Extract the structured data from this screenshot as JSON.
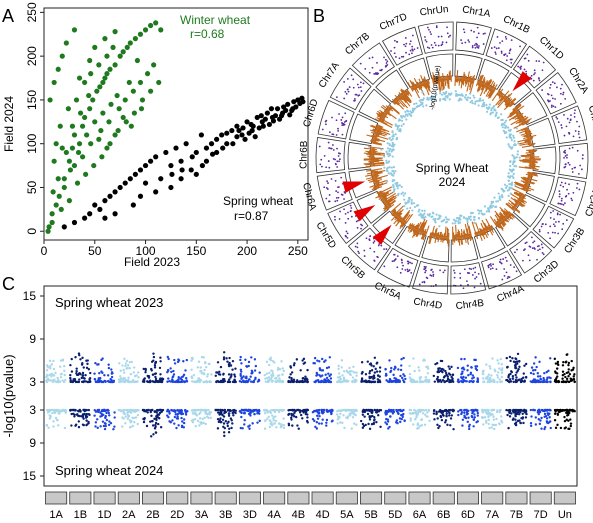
{
  "panels": {
    "a": "A",
    "b": "B",
    "c": "C"
  },
  "chart_data": [
    {
      "type": "scatter",
      "panel": "A",
      "xlabel": "Field 2023",
      "ylabel": "Field 2024",
      "xlim": [
        0,
        260
      ],
      "ylim": [
        -10,
        255
      ],
      "xticks": [
        0,
        50,
        100,
        150,
        200,
        250
      ],
      "yticks": [
        0,
        50,
        100,
        150,
        200,
        250
      ],
      "series": [
        {
          "name": "Winter wheat",
          "stat": "r=0.68",
          "color": "#1f7a1f",
          "points": [
            [
              5,
              5
            ],
            [
              8,
              10
            ],
            [
              12,
              30
            ],
            [
              15,
              40
            ],
            [
              20,
              60
            ],
            [
              25,
              80
            ],
            [
              28,
              95
            ],
            [
              30,
              110
            ],
            [
              35,
              100
            ],
            [
              38,
              120
            ],
            [
              40,
              130
            ],
            [
              45,
              140
            ],
            [
              48,
              150
            ],
            [
              52,
              160
            ],
            [
              55,
              165
            ],
            [
              58,
              170
            ],
            [
              60,
              175
            ],
            [
              62,
              180
            ],
            [
              65,
              185
            ],
            [
              70,
              190
            ],
            [
              75,
              200
            ],
            [
              78,
              205
            ],
            [
              82,
              210
            ],
            [
              85,
              215
            ],
            [
              90,
              220
            ],
            [
              95,
              225
            ],
            [
              100,
              230
            ],
            [
              105,
              235
            ],
            [
              110,
              238
            ],
            [
              115,
              230
            ],
            [
              6,
              150
            ],
            [
              10,
              170
            ],
            [
              14,
              185
            ],
            [
              18,
              200
            ],
            [
              22,
              215
            ],
            [
              30,
              230
            ],
            [
              12,
              100
            ],
            [
              16,
              120
            ],
            [
              24,
              140
            ],
            [
              32,
              150
            ],
            [
              40,
              170
            ],
            [
              46,
              180
            ],
            [
              54,
              190
            ],
            [
              62,
              200
            ],
            [
              68,
              210
            ],
            [
              80,
              150
            ],
            [
              88,
              160
            ],
            [
              95,
              170
            ],
            [
              102,
              180
            ],
            [
              108,
              190
            ],
            [
              20,
              50
            ],
            [
              26,
              70
            ],
            [
              34,
              90
            ],
            [
              42,
              110
            ],
            [
              50,
              125
            ],
            [
              58,
              135
            ],
            [
              66,
              145
            ],
            [
              72,
              155
            ],
            [
              84,
              170
            ],
            [
              92,
              195
            ],
            [
              10,
              80
            ],
            [
              18,
              95
            ],
            [
              28,
              120
            ],
            [
              36,
              135
            ],
            [
              44,
              155
            ],
            [
              56,
              115
            ],
            [
              64,
              125
            ],
            [
              74,
              140
            ],
            [
              86,
              120
            ],
            [
              96,
              140
            ],
            [
              8,
              20
            ],
            [
              14,
              60
            ],
            [
              22,
              90
            ],
            [
              30,
              75
            ],
            [
              38,
              85
            ],
            [
              46,
              100
            ],
            [
              54,
              105
            ],
            [
              62,
              95
            ],
            [
              70,
              110
            ],
            [
              78,
              130
            ],
            [
              4,
              0
            ],
            [
              9,
              45
            ],
            [
              17,
              25
            ],
            [
              25,
              35
            ],
            [
              33,
              55
            ],
            [
              41,
              65
            ],
            [
              49,
              75
            ],
            [
              57,
              85
            ],
            [
              65,
              100
            ],
            [
              73,
              115
            ],
            [
              81,
              125
            ],
            [
              89,
              135
            ],
            [
              97,
              150
            ],
            [
              105,
              160
            ],
            [
              113,
              170
            ],
            [
              50,
              210
            ],
            [
              60,
              220
            ],
            [
              70,
              228
            ],
            [
              45,
              195
            ],
            [
              35,
              175
            ]
          ]
        },
        {
          "name": "Spring wheat",
          "stat": "r=0.87",
          "color": "#000000",
          "points": [
            [
              20,
              5
            ],
            [
              30,
              10
            ],
            [
              40,
              15
            ],
            [
              45,
              20
            ],
            [
              50,
              30
            ],
            [
              55,
              25
            ],
            [
              60,
              35
            ],
            [
              65,
              40
            ],
            [
              70,
              45
            ],
            [
              75,
              50
            ],
            [
              80,
              55
            ],
            [
              85,
              60
            ],
            [
              90,
              65
            ],
            [
              95,
              70
            ],
            [
              100,
              75
            ],
            [
              105,
              80
            ],
            [
              110,
              85
            ],
            [
              115,
              60
            ],
            [
              120,
              90
            ],
            [
              125,
              75
            ],
            [
              130,
              95
            ],
            [
              135,
              80
            ],
            [
              140,
              100
            ],
            [
              145,
              70
            ],
            [
              150,
              90
            ],
            [
              155,
              110
            ],
            [
              160,
              95
            ],
            [
              165,
              100
            ],
            [
              170,
              105
            ],
            [
              175,
              110
            ],
            [
              180,
              100
            ],
            [
              185,
              115
            ],
            [
              190,
              120
            ],
            [
              195,
              110
            ],
            [
              200,
              125
            ],
            [
              205,
              115
            ],
            [
              210,
              130
            ],
            [
              215,
              125
            ],
            [
              220,
              135
            ],
            [
              225,
              130
            ],
            [
              230,
              140
            ],
            [
              235,
              135
            ],
            [
              240,
              145
            ],
            [
              245,
              140
            ],
            [
              250,
              150
            ],
            [
              255,
              148
            ],
            [
              198,
              105
            ],
            [
              202,
              112
            ],
            [
              206,
              120
            ],
            [
              212,
              118
            ],
            [
              218,
              128
            ],
            [
              222,
              122
            ],
            [
              228,
              132
            ],
            [
              232,
              128
            ],
            [
              238,
              138
            ],
            [
              242,
              133
            ],
            [
              248,
              142
            ],
            [
              252,
              146
            ],
            [
              150,
              65
            ],
            [
              160,
              80
            ],
            [
              170,
              90
            ],
            [
              180,
              112
            ],
            [
              190,
              108
            ],
            [
              208,
              108
            ],
            [
              214,
              132
            ],
            [
              224,
              140
            ],
            [
              236,
              142
            ],
            [
              246,
              148
            ],
            [
              125,
              50
            ],
            [
              135,
              60
            ],
            [
              110,
              45
            ],
            [
              100,
              55
            ],
            [
              95,
              40
            ],
            [
              88,
              30
            ],
            [
              70,
              20
            ],
            [
              60,
              15
            ],
            [
              186,
              100
            ],
            [
              192,
              115
            ],
            [
              196,
              118
            ],
            [
              204,
              122
            ],
            [
              216,
              120
            ],
            [
              226,
              126
            ],
            [
              234,
              132
            ],
            [
              244,
              138
            ],
            [
              254,
              152
            ],
            [
              176,
              95
            ],
            [
              166,
              88
            ],
            [
              156,
              75
            ],
            [
              146,
              85
            ],
            [
              136,
              70
            ],
            [
              126,
              65
            ]
          ]
        }
      ]
    },
    {
      "type": "circos",
      "panel": "B",
      "chromosomes": [
        "Chr1A",
        "Chr1B",
        "Chr1D",
        "Chr2A",
        "Chr2B",
        "Chr2D",
        "Chr3A",
        "Chr3B",
        "Chr3D",
        "Chr4A",
        "Chr4B",
        "Chr4D",
        "Chr5A",
        "Chr5B",
        "Chr5D",
        "Chr6A",
        "Chr6B",
        "Chr6D",
        "Chr7A",
        "Chr7B",
        "Chr7D",
        "ChrUn"
      ],
      "center_label": [
        "Spring Wheat",
        "2024"
      ],
      "inner_axis_label": "-log10(pvalue)",
      "colors": {
        "outer": "#5b2a9e",
        "middle": "#c0661a",
        "inner": "#8fc9e0",
        "arrow": "#e00000"
      },
      "arrows_on": [
        "Chr1D",
        "Chr5D",
        "Chr5B",
        "Chr6A"
      ]
    },
    {
      "type": "manhattan",
      "panel": "C",
      "top_title": "Spring wheat 2023",
      "bottom_title": "Spring wheat 2024",
      "ylabel": "-log10(pvalue)",
      "yticks_top": [
        15,
        9,
        3
      ],
      "yticks_bottom": [
        3,
        9,
        15
      ],
      "chromosomes": [
        "1A",
        "1B",
        "1D",
        "2A",
        "2B",
        "2D",
        "3A",
        "3B",
        "3D",
        "4A",
        "4B",
        "4D",
        "5A",
        "5B",
        "5D",
        "6A",
        "6B",
        "6D",
        "7A",
        "7B",
        "7D",
        "Un"
      ],
      "colors": [
        "#a9d8ea",
        "#0a1f6e",
        "#1e44e0"
      ],
      "significance_markers": [
        {
          "chr": "1B",
          "top": 7.0,
          "bottom": 8.5
        },
        {
          "chr": "2B",
          "top": 7.0,
          "bottom": 8.0
        },
        {
          "chr": "3B",
          "top": 7.5,
          "bottom": 8.0
        },
        {
          "chr": "5B",
          "top": 6.5,
          "bottom": 6.5
        },
        {
          "chr": "7B",
          "top": 7.0,
          "bottom": 6.0
        },
        {
          "chr": "Un",
          "top": 7.0,
          "bottom": 6.5
        }
      ]
    }
  ]
}
